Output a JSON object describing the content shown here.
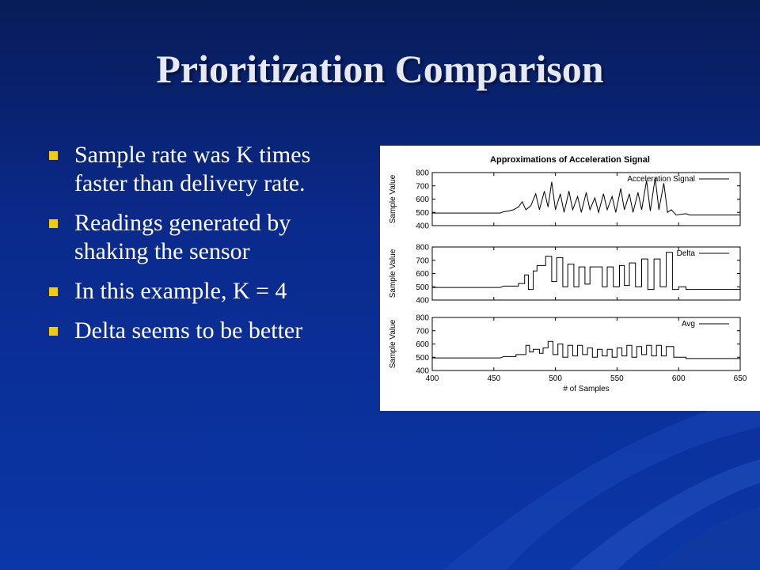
{
  "slide": {
    "title": "Prioritization Comparison",
    "bullets": [
      "Sample rate was K times faster than delivery rate.",
      "Readings generated by shaking the sensor",
      "In this example, K = 4",
      "Delta seems to be better"
    ]
  },
  "colors": {
    "title": "#e6e8f2",
    "bullet": "#f5cc00",
    "background": "#0a2a8c"
  },
  "chart_data": {
    "type": "line",
    "title": "Approximations of Acceleration Signal",
    "xlabel": "# of Samples",
    "ylabel": "Sample Value",
    "xlim": [
      400,
      650
    ],
    "xticks": [
      400,
      450,
      500,
      550,
      600,
      650
    ],
    "ylim": [
      400,
      800
    ],
    "yticks": [
      400,
      500,
      600,
      700,
      800
    ],
    "legend_position": "top-right",
    "panels": [
      {
        "name": "Acceleration Signal",
        "points": [
          [
            400,
            495
          ],
          [
            455,
            495
          ],
          [
            458,
            505
          ],
          [
            462,
            510
          ],
          [
            466,
            520
          ],
          [
            470,
            540
          ],
          [
            473,
            580
          ],
          [
            476,
            520
          ],
          [
            480,
            550
          ],
          [
            484,
            640
          ],
          [
            487,
            520
          ],
          [
            491,
            660
          ],
          [
            494,
            540
          ],
          [
            497,
            730
          ],
          [
            500,
            520
          ],
          [
            504,
            640
          ],
          [
            507,
            500
          ],
          [
            511,
            660
          ],
          [
            514,
            520
          ],
          [
            518,
            620
          ],
          [
            521,
            500
          ],
          [
            525,
            650
          ],
          [
            528,
            520
          ],
          [
            532,
            610
          ],
          [
            535,
            500
          ],
          [
            539,
            640
          ],
          [
            542,
            520
          ],
          [
            546,
            620
          ],
          [
            549,
            500
          ],
          [
            553,
            680
          ],
          [
            556,
            520
          ],
          [
            560,
            640
          ],
          [
            563,
            500
          ],
          [
            567,
            650
          ],
          [
            570,
            520
          ],
          [
            574,
            740
          ],
          [
            577,
            510
          ],
          [
            581,
            760
          ],
          [
            584,
            520
          ],
          [
            588,
            720
          ],
          [
            591,
            500
          ],
          [
            594,
            520
          ],
          [
            598,
            480
          ],
          [
            606,
            490
          ],
          [
            609,
            480
          ],
          [
            650,
            480
          ]
        ]
      },
      {
        "name": "Delta",
        "points": [
          [
            400,
            495
          ],
          [
            455,
            495
          ],
          [
            458,
            505
          ],
          [
            470,
            505
          ],
          [
            470,
            525
          ],
          [
            475,
            525
          ],
          [
            475,
            590
          ],
          [
            478,
            590
          ],
          [
            478,
            480
          ],
          [
            482,
            480
          ],
          [
            482,
            620
          ],
          [
            485,
            620
          ],
          [
            485,
            660
          ],
          [
            492,
            660
          ],
          [
            492,
            730
          ],
          [
            497,
            730
          ],
          [
            497,
            540
          ],
          [
            501,
            540
          ],
          [
            501,
            720
          ],
          [
            506,
            720
          ],
          [
            506,
            500
          ],
          [
            510,
            500
          ],
          [
            510,
            670
          ],
          [
            515,
            670
          ],
          [
            515,
            500
          ],
          [
            519,
            500
          ],
          [
            519,
            650
          ],
          [
            524,
            650
          ],
          [
            524,
            520
          ],
          [
            528,
            520
          ],
          [
            528,
            650
          ],
          [
            538,
            650
          ],
          [
            538,
            500
          ],
          [
            542,
            500
          ],
          [
            542,
            650
          ],
          [
            547,
            650
          ],
          [
            547,
            500
          ],
          [
            552,
            500
          ],
          [
            552,
            660
          ],
          [
            556,
            660
          ],
          [
            556,
            510
          ],
          [
            560,
            510
          ],
          [
            560,
            680
          ],
          [
            565,
            680
          ],
          [
            565,
            500
          ],
          [
            570,
            500
          ],
          [
            570,
            710
          ],
          [
            575,
            710
          ],
          [
            575,
            480
          ],
          [
            580,
            480
          ],
          [
            580,
            710
          ],
          [
            585,
            710
          ],
          [
            585,
            500
          ],
          [
            590,
            500
          ],
          [
            590,
            760
          ],
          [
            595,
            760
          ],
          [
            595,
            480
          ],
          [
            600,
            480
          ],
          [
            600,
            500
          ],
          [
            606,
            500
          ],
          [
            606,
            480
          ],
          [
            650,
            480
          ]
        ]
      },
      {
        "name": "Avg",
        "points": [
          [
            400,
            495
          ],
          [
            455,
            495
          ],
          [
            458,
            505
          ],
          [
            468,
            505
          ],
          [
            468,
            520
          ],
          [
            476,
            520
          ],
          [
            476,
            590
          ],
          [
            479,
            590
          ],
          [
            479,
            540
          ],
          [
            482,
            540
          ],
          [
            482,
            560
          ],
          [
            487,
            560
          ],
          [
            487,
            530
          ],
          [
            490,
            530
          ],
          [
            490,
            570
          ],
          [
            494,
            570
          ],
          [
            494,
            620
          ],
          [
            498,
            620
          ],
          [
            498,
            520
          ],
          [
            502,
            520
          ],
          [
            502,
            600
          ],
          [
            506,
            600
          ],
          [
            506,
            500
          ],
          [
            510,
            500
          ],
          [
            510,
            590
          ],
          [
            514,
            590
          ],
          [
            514,
            510
          ],
          [
            518,
            510
          ],
          [
            518,
            590
          ],
          [
            522,
            590
          ],
          [
            522,
            520
          ],
          [
            526,
            520
          ],
          [
            526,
            570
          ],
          [
            530,
            570
          ],
          [
            530,
            500
          ],
          [
            534,
            500
          ],
          [
            534,
            560
          ],
          [
            538,
            560
          ],
          [
            538,
            510
          ],
          [
            542,
            510
          ],
          [
            542,
            560
          ],
          [
            546,
            560
          ],
          [
            546,
            500
          ],
          [
            550,
            500
          ],
          [
            550,
            570
          ],
          [
            554,
            570
          ],
          [
            554,
            510
          ],
          [
            558,
            510
          ],
          [
            558,
            590
          ],
          [
            562,
            590
          ],
          [
            562,
            500
          ],
          [
            566,
            500
          ],
          [
            566,
            580
          ],
          [
            570,
            580
          ],
          [
            570,
            520
          ],
          [
            574,
            520
          ],
          [
            574,
            590
          ],
          [
            578,
            590
          ],
          [
            578,
            510
          ],
          [
            582,
            510
          ],
          [
            582,
            590
          ],
          [
            586,
            590
          ],
          [
            586,
            510
          ],
          [
            590,
            510
          ],
          [
            590,
            580
          ],
          [
            596,
            580
          ],
          [
            596,
            500
          ],
          [
            606,
            500
          ],
          [
            606,
            490
          ],
          [
            650,
            490
          ]
        ]
      }
    ]
  }
}
